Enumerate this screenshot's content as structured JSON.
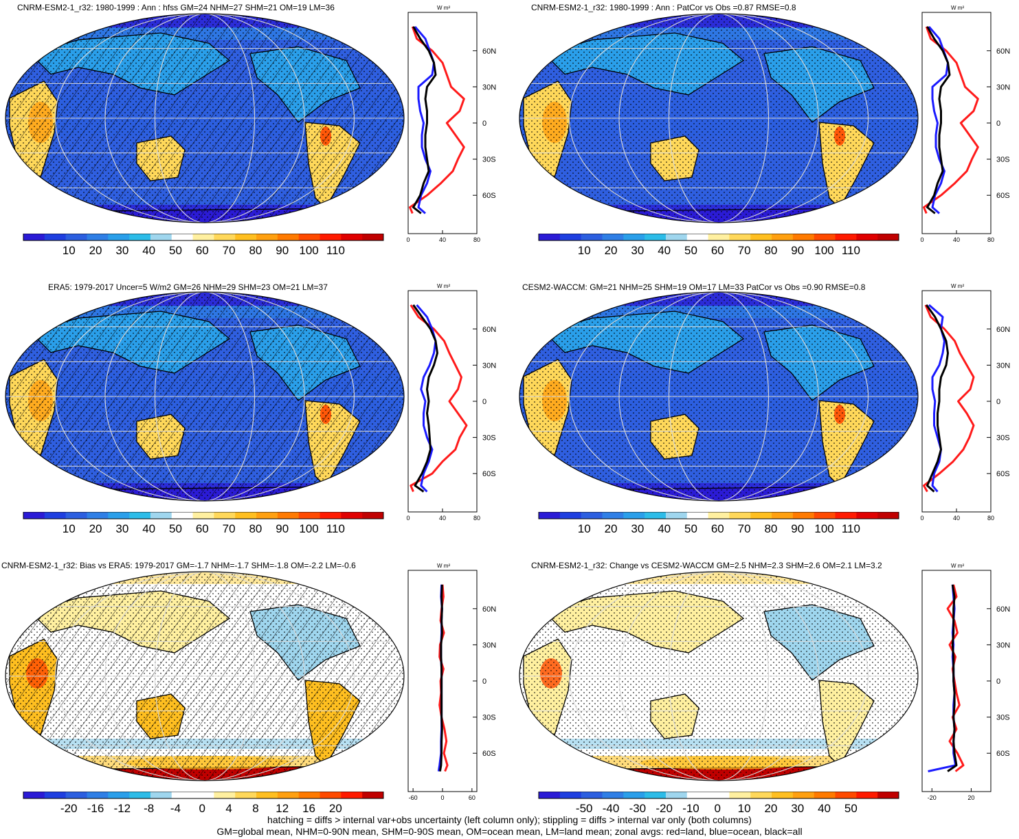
{
  "footer": {
    "line1": "hatching = diffs > internal var+obs uncertainty (left column only); stippling = diffs > internal var only (both columns)",
    "line2": "GM=global mean, NHM=0-90N mean, SHM=0-90S mean, OM=ocean mean, LM=land mean; zonal avgs: red=land, blue=ocean, black=all"
  },
  "colors": {
    "land": "#ff1a1a",
    "ocean": "#1a1aff",
    "all": "#000000"
  },
  "chart_data": [
    {
      "type": "heatmap",
      "id": "p1",
      "title": "CNRM-ESM2-1_r32: 1980-1999 : Ann : hfss GM=24 NHM=27 SHM=21 OM=19 LM=36",
      "colorbar_ticks": [
        "10",
        "20",
        "30",
        "40",
        "50",
        "60",
        "70",
        "80",
        "90",
        "100",
        "110"
      ],
      "palette": "abs",
      "hatching": true,
      "zonal": {
        "unit_label": "W m²",
        "xticks": [
          "0",
          "40",
          "80"
        ],
        "xlim": [
          0,
          80
        ],
        "yticks": [
          "60N",
          "30N",
          "0",
          "30S",
          "60S"
        ],
        "lat": [
          80,
          70,
          60,
          50,
          40,
          30,
          20,
          10,
          0,
          -10,
          -20,
          -30,
          -40,
          -50,
          -60,
          -70,
          -75
        ],
        "land": [
          5,
          10,
          28,
          40,
          45,
          50,
          65,
          60,
          45,
          55,
          65,
          58,
          52,
          38,
          22,
          2,
          5
        ],
        "ocean": [
          8,
          20,
          25,
          30,
          28,
          12,
          12,
          14,
          18,
          16,
          16,
          20,
          26,
          22,
          15,
          12,
          20
        ],
        "all": [
          6,
          14,
          24,
          30,
          32,
          22,
          20,
          22,
          22,
          20,
          20,
          22,
          24,
          18,
          14,
          6,
          15
        ]
      }
    },
    {
      "type": "heatmap",
      "id": "p2",
      "title": "CNRM-ESM2-1_r32: 1980-1999 : Ann : PatCor vs Obs =0.87 RMSE=0.8",
      "colorbar_ticks": [
        "10",
        "20",
        "30",
        "40",
        "50",
        "60",
        "70",
        "80",
        "90",
        "100",
        "110"
      ],
      "palette": "abs",
      "hatching": false,
      "zonal": {
        "unit_label": "W m²",
        "xticks": [
          "0",
          "40",
          "80"
        ],
        "xlim": [
          0,
          80
        ],
        "yticks": [
          "60N",
          "30N",
          "0",
          "30S",
          "60S"
        ],
        "lat": [
          80,
          70,
          60,
          50,
          40,
          30,
          20,
          10,
          0,
          -10,
          -20,
          -30,
          -40,
          -50,
          -60,
          -70,
          -75
        ],
        "land": [
          5,
          10,
          28,
          40,
          45,
          50,
          65,
          60,
          45,
          55,
          65,
          58,
          52,
          38,
          22,
          2,
          5
        ],
        "ocean": [
          8,
          20,
          25,
          30,
          28,
          12,
          12,
          14,
          18,
          16,
          16,
          20,
          26,
          22,
          15,
          12,
          20
        ],
        "all": [
          6,
          14,
          24,
          30,
          32,
          22,
          20,
          22,
          22,
          20,
          20,
          22,
          24,
          18,
          14,
          6,
          15
        ]
      }
    },
    {
      "type": "heatmap",
      "id": "p3",
      "title": "ERA5: 1979-2017 Uncer=5 W/m2 GM=26 NHM=29 SHM=23 OM=21 LM=37",
      "colorbar_ticks": [
        "10",
        "20",
        "30",
        "40",
        "50",
        "60",
        "70",
        "80",
        "90",
        "100",
        "110"
      ],
      "palette": "abs",
      "hatching": true,
      "zonal": {
        "unit_label": "W m²",
        "xticks": [
          "0",
          "40",
          "80"
        ],
        "xlim": [
          0,
          80
        ],
        "yticks": [
          "60N",
          "30N",
          "0",
          "30S",
          "60S"
        ],
        "lat": [
          80,
          70,
          60,
          50,
          40,
          30,
          20,
          10,
          0,
          -10,
          -20,
          -30,
          -40,
          -50,
          -60,
          -70,
          -75
        ],
        "land": [
          3,
          12,
          30,
          42,
          48,
          55,
          62,
          58,
          48,
          58,
          68,
          60,
          55,
          40,
          28,
          3,
          6
        ],
        "ocean": [
          10,
          22,
          28,
          32,
          30,
          25,
          18,
          15,
          20,
          18,
          18,
          22,
          28,
          24,
          18,
          15,
          22
        ],
        "all": [
          6,
          16,
          26,
          32,
          34,
          30,
          24,
          22,
          24,
          22,
          24,
          25,
          26,
          22,
          16,
          8,
          18
        ]
      }
    },
    {
      "type": "heatmap",
      "id": "p4",
      "title": "CESM2-WACCM: GM=21 NHM=25 SHM=19 OM=17 LM=33 PatCor vs Obs =0.90 RMSE=0.8",
      "colorbar_ticks": [
        "10",
        "20",
        "30",
        "40",
        "50",
        "60",
        "70",
        "80",
        "90",
        "100",
        "110"
      ],
      "palette": "abs",
      "hatching": false,
      "zonal": {
        "unit_label": "W m²",
        "xticks": [
          "0",
          "40",
          "80"
        ],
        "xlim": [
          0,
          80
        ],
        "yticks": [
          "60N",
          "30N",
          "0",
          "30S",
          "60S"
        ],
        "lat": [
          80,
          70,
          60,
          50,
          40,
          30,
          20,
          10,
          0,
          -10,
          -20,
          -30,
          -40,
          -50,
          -60,
          -70,
          -75
        ],
        "land": [
          4,
          10,
          26,
          38,
          44,
          52,
          60,
          56,
          42,
          52,
          60,
          55,
          48,
          36,
          20,
          2,
          6
        ],
        "ocean": [
          8,
          24,
          22,
          26,
          24,
          20,
          12,
          12,
          15,
          14,
          14,
          18,
          22,
          20,
          14,
          12,
          18
        ],
        "all": [
          5,
          15,
          22,
          28,
          30,
          28,
          22,
          20,
          20,
          18,
          18,
          20,
          22,
          18,
          12,
          6,
          14
        ]
      }
    },
    {
      "type": "heatmap",
      "id": "p5",
      "title": "CNRM-ESM2-1_r32: Bias vs ERA5: 1979-2017 GM=-1.7 NHM=-1.7 SHM=-1.8 OM=-2.2 LM=-0.6",
      "colorbar_ticks": [
        "-20",
        "-16",
        "-12",
        "-8",
        "-4",
        "0",
        "4",
        "8",
        "12",
        "16",
        "20"
      ],
      "palette": "diff",
      "hatching": true,
      "zonal": {
        "unit_label": "W m²",
        "xticks": [
          "-60",
          "0",
          "60"
        ],
        "xlim": [
          -70,
          70
        ],
        "yticks": [
          "60N",
          "30N",
          "0",
          "30S",
          "60S"
        ],
        "lat": [
          80,
          70,
          60,
          50,
          40,
          30,
          20,
          10,
          0,
          -10,
          -20,
          -30,
          -40,
          -50,
          -60,
          -70,
          -75
        ],
        "land": [
          0,
          2,
          -2,
          -4,
          3,
          -5,
          -6,
          2,
          -4,
          -3,
          -6,
          -2,
          4,
          8,
          3,
          10,
          5
        ],
        "ocean": [
          -2,
          -3,
          -1,
          -2,
          -2,
          -3,
          -3,
          -2,
          -2,
          -2,
          -2,
          -2,
          -2,
          -3,
          -3,
          -6,
          -8
        ],
        "all": [
          -1,
          -2,
          -1,
          -2,
          -1,
          -3,
          -3,
          -2,
          -2,
          -2,
          -2,
          -2,
          -1,
          -2,
          -2,
          -3,
          -5
        ]
      }
    },
    {
      "type": "heatmap",
      "id": "p6",
      "title": "CNRM-ESM2-1_r32: Change vs CESM2-WACCM GM=2.5 NHM=2.3 SHM=2.6 OM=2.1 LM=3.2",
      "colorbar_ticks": [
        "-50",
        "-40",
        "-30",
        "-20",
        "-10",
        "0",
        "10",
        "20",
        "30",
        "40",
        "50"
      ],
      "palette": "diff",
      "hatching": false,
      "zonal": {
        "unit_label": "W m²",
        "xticks": [
          "-20",
          "20"
        ],
        "xlim": [
          -30,
          40
        ],
        "yticks": [
          "60N",
          "30N",
          "0",
          "30S",
          "60S"
        ],
        "lat": [
          80,
          70,
          60,
          50,
          40,
          30,
          20,
          10,
          0,
          -10,
          -20,
          -30,
          -40,
          -50,
          -60,
          -70,
          -75
        ],
        "land": [
          2,
          5,
          -4,
          3,
          6,
          -2,
          4,
          1,
          3,
          5,
          8,
          1,
          5,
          -2,
          6,
          12,
          4
        ],
        "ocean": [
          1,
          2,
          3,
          2,
          1,
          2,
          1,
          2,
          2,
          3,
          2,
          2,
          3,
          2,
          2,
          4,
          -24
        ],
        "all": [
          1,
          3,
          2,
          2,
          2,
          1,
          2,
          2,
          2,
          3,
          3,
          2,
          3,
          2,
          3,
          5,
          -4
        ]
      }
    }
  ]
}
